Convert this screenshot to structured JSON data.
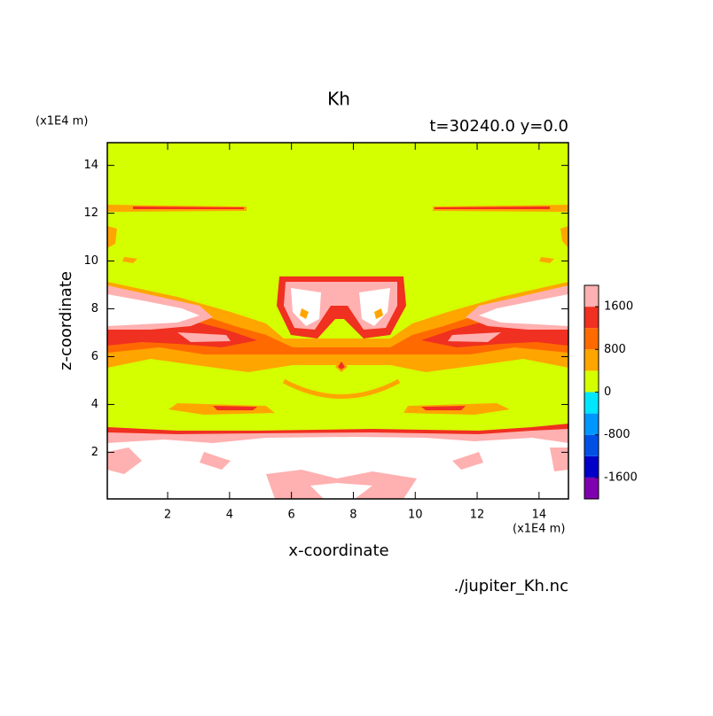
{
  "chart_data": {
    "type": "contour",
    "title": "Kh",
    "subtitle": "t=30240.0 y=0.0",
    "x_label": "x-coordinate",
    "y_label": "z-coordinate",
    "x_unit": "(x1E4 m)",
    "y_unit": "(x1E4 m)",
    "source": "./jupiter_Kh.nc",
    "xlim": [
      0.05,
      14.95
    ],
    "xticks": [
      2,
      4,
      6,
      8,
      10,
      12,
      14
    ],
    "ylim": [
      0.05,
      14.95
    ],
    "yticks": [
      2,
      4,
      6,
      8,
      10,
      12,
      14
    ],
    "levels": [
      -2000,
      -1600,
      -1200,
      -800,
      -400,
      0,
      400,
      800,
      1200,
      1600,
      2000
    ],
    "colorbar_ticks": [
      -1600,
      -800,
      0,
      800,
      1600
    ],
    "colors": [
      "#8000b0",
      "#0000c8",
      "#0050e6",
      "#0096ff",
      "#00e6ff",
      "#d4ff00",
      "#ffa500",
      "#ff6a00",
      "#f03020",
      "#ffb0b0"
    ],
    "above_color": "#ffffff"
  }
}
